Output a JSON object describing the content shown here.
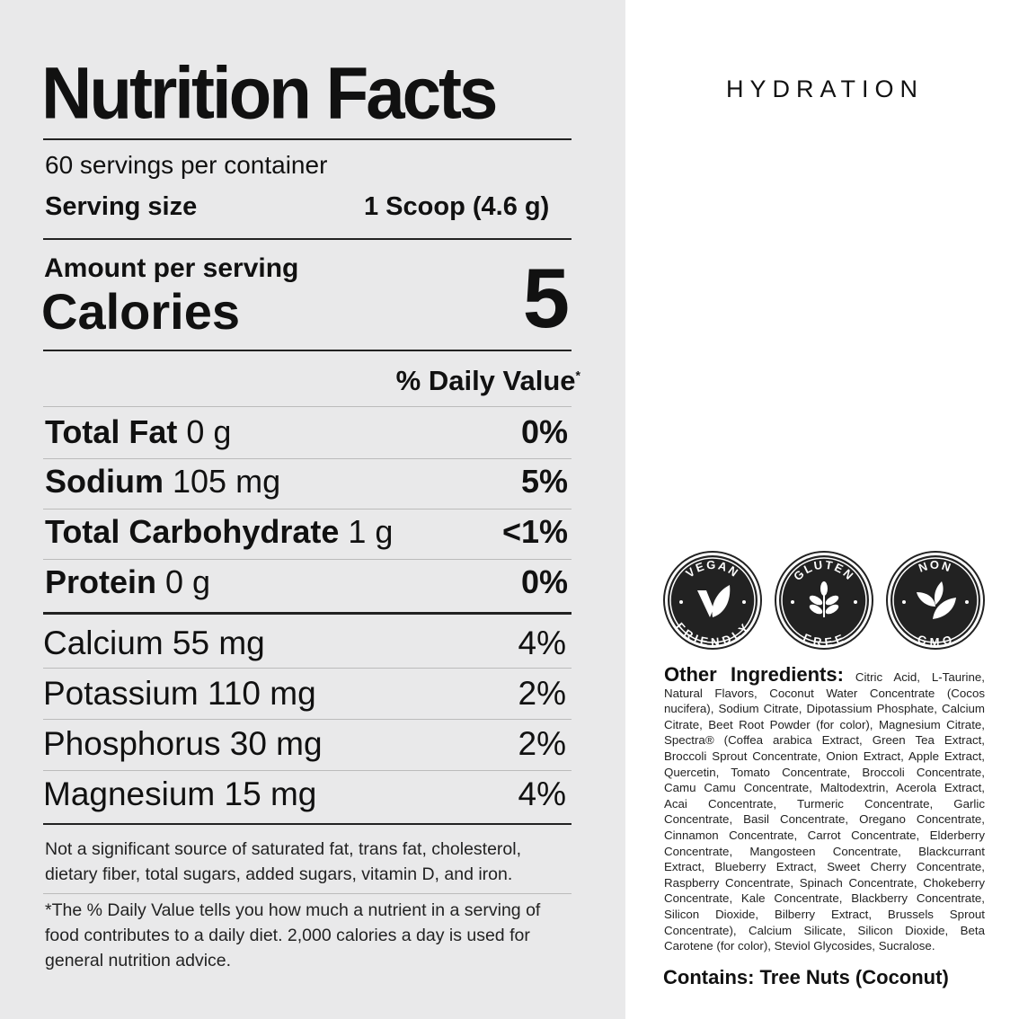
{
  "label": {
    "title": "Nutrition Facts",
    "servings_per_container": "60 servings per container",
    "serving_size_label": "Serving size",
    "serving_size_value": "1 Scoop (4.6 g)",
    "amount_per_serving": "Amount per serving",
    "calories_label": "Calories",
    "calories_value": "5",
    "daily_value_header": "% Daily Value",
    "daily_value_mark": "*",
    "major_nutrients": [
      {
        "name": "Total Fat",
        "amount": "0 g",
        "dv": "0%"
      },
      {
        "name": "Sodium",
        "amount": "105 mg",
        "dv": "5%"
      },
      {
        "name": "Total Carbohydrate",
        "amount": "1 g",
        "dv": "<1%"
      },
      {
        "name": "Protein",
        "amount": "0 g",
        "dv": "0%"
      }
    ],
    "minerals": [
      {
        "name": "Calcium 55 mg",
        "dv": "4%"
      },
      {
        "name": "Potassium 110 mg",
        "dv": "2%"
      },
      {
        "name": "Phosphorus 30 mg",
        "dv": "2%"
      },
      {
        "name": "Magnesium 15 mg",
        "dv": "4%"
      }
    ],
    "note_not_significant": "Not a significant source of saturated fat, trans fat, cholesterol, dietary fiber, total sugars, added sugars, vitamin D, and iron.",
    "note_daily_value": "*The % Daily Value tells you how much a nutrient in a serving of food contributes to a daily diet. 2,000 calories a day is used for general nutrition advice."
  },
  "product": {
    "name": "HYDRATION",
    "badges": [
      {
        "top": "VEGAN",
        "bottom": "FRIENDLY",
        "icon": "leaf-check-icon"
      },
      {
        "top": "GLUTEN",
        "bottom": "FREE",
        "icon": "wheat-icon"
      },
      {
        "top": "NON",
        "bottom": "GMO",
        "icon": "leaves-icon"
      }
    ],
    "ingredients_label": "Other Ingredients:",
    "ingredients_text": "Citric Acid, L-Taurine, Natural Flavors, Coconut Water Concentrate (Cocos nucifera), Sodium Citrate, Dipotassium Phosphate, Calcium Citrate, Beet Root Powder (for color), Magnesium Citrate, Spectra® (Coffea arabica Extract, Green Tea Extract, Broccoli Sprout Concentrate, Onion Extract, Apple Extract, Quercetin, Tomato Concentrate, Broccoli Concentrate, Camu Camu Concentrate, Maltodextrin, Acerola Extract, Acai Concentrate, Turmeric Concentrate, Garlic Concentrate, Basil Concentrate, Oregano Concentrate, Cinnamon Concentrate, Carrot Concentrate, Elderberry Concentrate, Mangosteen Concentrate, Blackcurrant Extract, Blueberry Extract, Sweet Cherry Concentrate, Raspberry Concentrate, Spinach Concentrate, Chokeberry Concentrate, Kale Concentrate, Blackberry Concentrate, Silicon Dioxide, Bilberry Extract, Brussels Sprout Concentrate), Calcium Silicate, Silicon Dioxide, Beta Carotene (for color), Steviol Glycosides, Sucralose.",
    "contains": "Contains: Tree Nuts (Coconut)"
  }
}
